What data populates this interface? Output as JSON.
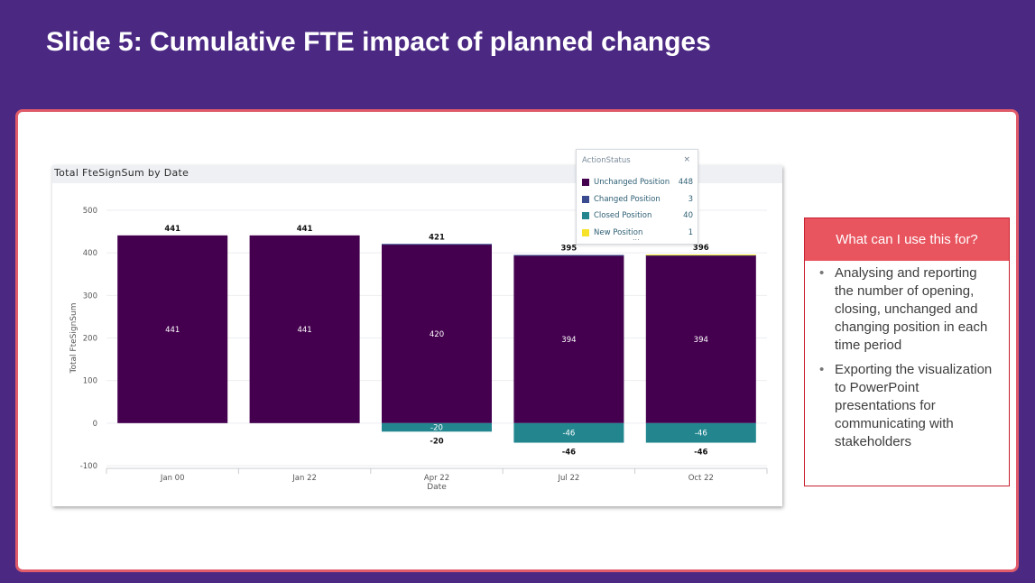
{
  "slide": {
    "title": "Slide 5: Cumulative FTE impact of planned changes"
  },
  "colors": {
    "background": "#4b2983",
    "card_border": "#e05c6a",
    "unchanged": "#44004f",
    "changed": "#3b4b8f",
    "closed": "#23868f",
    "new": "#f7e22a",
    "info_header": "#e8555f"
  },
  "chart_data": {
    "type": "bar",
    "title": "Total FteSignSum by Date",
    "xlabel": "Date",
    "ylabel": "Total FteSignSum",
    "ylim": [
      -100,
      500
    ],
    "yticks": [
      "500",
      "400",
      "300",
      "200",
      "100",
      "0",
      "-100"
    ],
    "grid": true,
    "categories": [
      "Jan 00",
      "Jan 22",
      "Apr 22",
      "Jul 22",
      "Oct 22"
    ],
    "series": [
      {
        "name": "Unchanged Position",
        "values": [
          441,
          441,
          420,
          394,
          394
        ]
      },
      {
        "name": "Changed Position",
        "values": [
          0,
          0,
          1,
          1,
          1
        ]
      },
      {
        "name": "Closed Position",
        "values": [
          0,
          0,
          -20,
          -46,
          -46
        ]
      },
      {
        "name": "New Position",
        "values": [
          0,
          0,
          0,
          0,
          1
        ]
      }
    ],
    "inner_labels": {
      "positive": [
        "441",
        "441",
        "420",
        "394",
        "394"
      ],
      "negative": [
        "",
        "",
        "-20",
        "-46",
        "-46"
      ]
    },
    "total_labels": {
      "positive": [
        "441",
        "441",
        "421",
        "395",
        "396"
      ],
      "negative": [
        "",
        "",
        "-20",
        "-46",
        "-46"
      ]
    },
    "legend": {
      "title": "ActionStatus",
      "close_symbol": "×",
      "more_symbol": "...",
      "placement": "top-right",
      "items": [
        {
          "label": "Unchanged Position",
          "count": "448",
          "color": "#44004f"
        },
        {
          "label": "Changed Position",
          "count": "3",
          "color": "#3b4b8f"
        },
        {
          "label": "Closed Position",
          "count": "40",
          "color": "#23868f"
        },
        {
          "label": "New Position",
          "count": "1",
          "color": "#f7e22a"
        }
      ]
    }
  },
  "info_box": {
    "header": "What can I use this for?",
    "bullet_symbol": "•",
    "items": [
      "Analysing and reporting the number of opening, closing, unchanged and changing position in each time period",
      "Exporting the visualization to PowerPoint presentations for communicating with stakeholders"
    ]
  }
}
